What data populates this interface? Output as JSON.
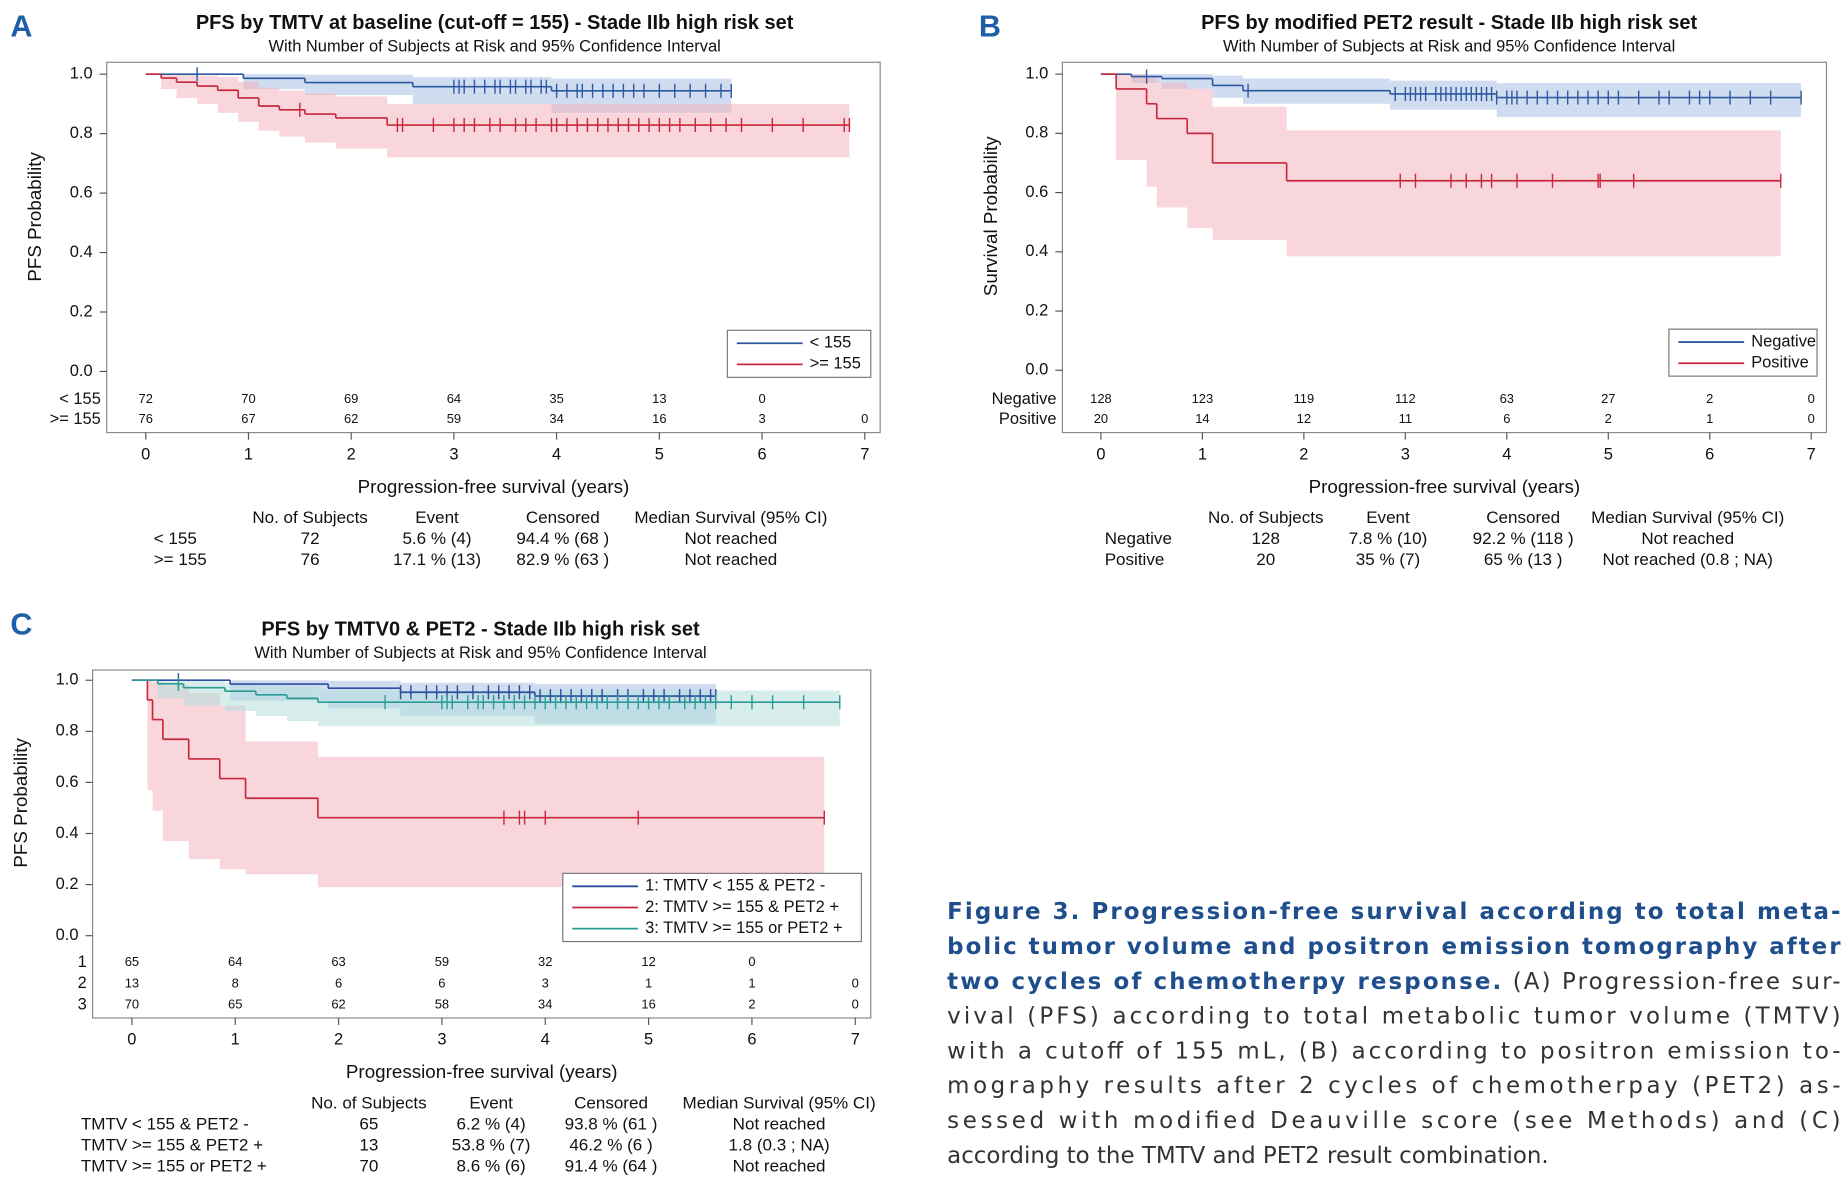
{
  "chart_data": [
    {
      "type": "step",
      "panel": "A",
      "title": "PFS by TMTV at baseline (cut-off = 155) - Stade IIb high risk set",
      "subtitle": "With Number of Subjects at Risk and 95% Confidence Interval",
      "xlabel": "Progression-free survival (years)",
      "ylabel": "PFS Probability",
      "xlim": [
        -0.38,
        7.15
      ],
      "ylim": [
        0,
        1.04
      ],
      "xticks": [
        0,
        1,
        2,
        3,
        4,
        5,
        6,
        7
      ],
      "yticks": [
        {
          "value": 0,
          "label": "0.0"
        },
        0.2,
        0.4,
        0.6,
        0.8,
        {
          "value": 1,
          "label": "1.0"
        }
      ],
      "legend": "lower right",
      "series": [
        {
          "name": "< 155",
          "color": "#2d5aa0",
          "band_color": "#a9bfe3",
          "x": [
            0,
            0.95,
            1.55,
            2.6,
            3.95
          ],
          "values": [
            1,
            0.986,
            0.972,
            0.958,
            0.944
          ],
          "lower": [
            1,
            0.95,
            0.93,
            0.9,
            0.87
          ],
          "upper": [
            1,
            1,
            0.998,
            0.99,
            0.985
          ],
          "censored": [
            0.5,
            3.0,
            3.05,
            3.1,
            3.2,
            3.3,
            3.4,
            3.45,
            3.55,
            3.6,
            3.7,
            3.75,
            3.85,
            3.9,
            4.0,
            4.1,
            4.2,
            4.25,
            4.35,
            4.45,
            4.55,
            4.65,
            4.75,
            4.85,
            5.0,
            5.15,
            5.3,
            5.45,
            5.6,
            5.7
          ]
        },
        {
          "name": ">= 155",
          "color": "#c8283c",
          "band_color": "#f2b5c0",
          "x": [
            0,
            0.15,
            0.3,
            0.5,
            0.7,
            0.9,
            1.1,
            1.3,
            1.55,
            1.85,
            2.35
          ],
          "values": [
            1,
            0.987,
            0.973,
            0.96,
            0.946,
            0.92,
            0.893,
            0.88,
            0.866,
            0.853,
            0.829
          ],
          "lower": [
            1,
            0.95,
            0.92,
            0.9,
            0.87,
            0.84,
            0.81,
            0.79,
            0.77,
            0.75,
            0.72
          ],
          "upper": [
            1,
            1,
            1,
            0.995,
            0.99,
            0.975,
            0.955,
            0.945,
            0.935,
            0.925,
            0.9
          ],
          "censored": [
            1.5,
            2.45,
            2.5,
            2.8,
            3.0,
            3.1,
            3.2,
            3.35,
            3.45,
            3.6,
            3.7,
            3.8,
            3.95,
            4.0,
            4.1,
            4.2,
            4.3,
            4.4,
            4.5,
            4.6,
            4.7,
            4.8,
            4.9,
            5.0,
            5.1,
            5.2,
            5.35,
            5.5,
            5.65,
            5.8,
            6.1,
            6.4,
            6.8,
            6.85
          ]
        }
      ],
      "at_risk": {
        "labels": [
          "< 155",
          ">= 155"
        ],
        "times": [
          0,
          1,
          2,
          3,
          4,
          5,
          6,
          7
        ],
        "counts": [
          [
            72,
            70,
            69,
            64,
            35,
            13,
            0,
            null
          ],
          [
            76,
            67,
            62,
            59,
            34,
            16,
            3,
            0
          ]
        ]
      },
      "summary": {
        "header": [
          "No. of Subjects",
          "Event",
          "Censored",
          "Median Survival (95% CI)"
        ],
        "rows": [
          [
            "< 155",
            "72",
            "5.6 % (4)",
            "94.4 % (68 )",
            "Not reached"
          ],
          [
            ">= 155",
            "76",
            "17.1 % (13)",
            "82.9 % (63 )",
            "Not reached"
          ]
        ]
      }
    },
    {
      "type": "step",
      "panel": "B",
      "title": "PFS by modified PET2 result - Stade IIb high risk set",
      "subtitle": "With Number of Subjects at Risk and 95% Confidence Interval",
      "xlabel": "Progression-free survival (years)",
      "ylabel": "Survival Probability",
      "xlim": [
        -0.38,
        7.15
      ],
      "ylim": [
        0,
        1.04
      ],
      "xticks": [
        0,
        1,
        2,
        3,
        4,
        5,
        6,
        7
      ],
      "yticks": [
        {
          "value": 0,
          "label": "0.0"
        },
        0.2,
        0.4,
        0.6,
        0.8,
        {
          "value": 1,
          "label": "1.0"
        }
      ],
      "legend": "lower right",
      "series": [
        {
          "name": "Negative",
          "color": "#2d5aa0",
          "band_color": "#a9bfe3",
          "x": [
            0,
            0.3,
            0.6,
            1.1,
            1.4,
            2.85,
            3.9
          ],
          "values": [
            1,
            0.992,
            0.985,
            0.962,
            0.944,
            0.933,
            0.921
          ],
          "lower": [
            1,
            0.97,
            0.95,
            0.92,
            0.9,
            0.88,
            0.855
          ],
          "upper": [
            1,
            1,
            1,
            0.995,
            0.985,
            0.978,
            0.97
          ],
          "censored": [
            0.45,
            1.45,
            2.9,
            3.0,
            3.05,
            3.1,
            3.15,
            3.2,
            3.3,
            3.35,
            3.4,
            3.45,
            3.5,
            3.55,
            3.6,
            3.65,
            3.7,
            3.75,
            3.8,
            3.85,
            3.9,
            4.0,
            4.05,
            4.1,
            4.2,
            4.3,
            4.4,
            4.5,
            4.6,
            4.7,
            4.8,
            4.9,
            5.0,
            5.1,
            5.3,
            5.5,
            5.6,
            5.8,
            5.9,
            6.0,
            6.2,
            6.4,
            6.6,
            6.9
          ]
        },
        {
          "name": "Positive",
          "color": "#c8283c",
          "band_color": "#f2b5c0",
          "x": [
            0,
            0.15,
            0.45,
            0.55,
            0.85,
            1.1,
            1.83
          ],
          "values": [
            1,
            0.95,
            0.9,
            0.85,
            0.8,
            0.7,
            0.64
          ],
          "lower": [
            1,
            0.71,
            0.62,
            0.55,
            0.48,
            0.44,
            0.385
          ],
          "upper": [
            1,
            1,
            0.99,
            0.97,
            0.95,
            0.89,
            0.81
          ],
          "censored": [
            2.95,
            3.1,
            3.45,
            3.6,
            3.75,
            3.85,
            4.1,
            4.45,
            4.9,
            4.92,
            5.25,
            6.7
          ]
        }
      ],
      "at_risk": {
        "labels": [
          "Negative",
          "Positive"
        ],
        "times": [
          0,
          1,
          2,
          3,
          4,
          5,
          6,
          7
        ],
        "counts": [
          [
            128,
            123,
            119,
            112,
            63,
            27,
            2,
            0
          ],
          [
            20,
            14,
            12,
            11,
            6,
            2,
            1,
            0
          ]
        ]
      },
      "summary": {
        "header": [
          "No. of Subjects",
          "Event",
          "Censored",
          "Median Survival (95% CI)"
        ],
        "rows": [
          [
            "Negative",
            "128",
            "7.8 % (10)",
            "92.2 % (118 )",
            "Not reached"
          ],
          [
            "Positive",
            "20",
            "35 % (7)",
            "65 % (13 )",
            "Not reached (0.8 ; NA)"
          ]
        ]
      }
    },
    {
      "type": "step",
      "panel": "C",
      "title": "PFS by TMTV0 & PET2 - Stade IIb high risk set",
      "subtitle": "With Number of Subjects at Risk and 95% Confidence Interval",
      "xlabel": "Progression-free survival (years)",
      "ylabel": "PFS Probability",
      "xlim": [
        -0.38,
        7.15
      ],
      "ylim": [
        0,
        1.04
      ],
      "xticks": [
        0,
        1,
        2,
        3,
        4,
        5,
        6,
        7
      ],
      "yticks": [
        {
          "value": 0,
          "label": "0.0"
        },
        0.2,
        0.4,
        0.6,
        0.8,
        {
          "value": 1,
          "label": "1.0"
        }
      ],
      "legend": "lower right",
      "series": [
        {
          "name": "1: TMTV < 155 & PET2 -",
          "color": "#2d4f9e",
          "band_color": "#a9bfe3",
          "x": [
            0,
            0.95,
            1.9,
            2.6,
            3.9
          ],
          "values": [
            1,
            0.985,
            0.969,
            0.953,
            0.938
          ],
          "lower": [
            1,
            0.92,
            0.89,
            0.86,
            0.83
          ],
          "upper": [
            1,
            1,
            0.998,
            0.99,
            0.985
          ],
          "censored": [
            0.45,
            2.6,
            2.7,
            2.85,
            2.95,
            3.05,
            3.15,
            3.3,
            3.45,
            3.55,
            3.65,
            3.75,
            3.85,
            3.95,
            4.05,
            4.15,
            4.25,
            4.35,
            4.45,
            4.55,
            4.7,
            4.8,
            4.95,
            5.05,
            5.15,
            5.3,
            5.4,
            5.5,
            5.6,
            5.65
          ]
        },
        {
          "name": "2: TMTV >= 155 & PET2 +",
          "color": "#c8283c",
          "band_color": "#f2b5c0",
          "x": [
            0,
            0.15,
            0.2,
            0.3,
            0.55,
            0.85,
            1.1,
            1.8
          ],
          "values": [
            1,
            0.923,
            0.846,
            0.769,
            0.692,
            0.615,
            0.538,
            0.462
          ],
          "lower": [
            1,
            0.57,
            0.49,
            0.37,
            0.3,
            0.26,
            0.24,
            0.19
          ],
          "upper": [
            1,
            1,
            0.995,
            0.98,
            0.95,
            0.9,
            0.76,
            0.7
          ],
          "censored": [
            3.6,
            3.75,
            3.8,
            4.0,
            4.9,
            6.7
          ]
        },
        {
          "name": "3: TMTV >= 155 or PET2 +",
          "color": "#2b9b96",
          "band_color": "#b4dfdc",
          "x": [
            0,
            0.25,
            0.5,
            0.9,
            1.2,
            1.5,
            1.8
          ],
          "values": [
            1,
            0.986,
            0.971,
            0.957,
            0.943,
            0.929,
            0.914
          ],
          "lower": [
            1,
            0.93,
            0.9,
            0.88,
            0.86,
            0.84,
            0.82
          ],
          "upper": [
            1,
            1,
            0.998,
            0.99,
            0.985,
            0.975,
            0.96
          ],
          "censored": [
            0.45,
            2.45,
            3.0,
            3.05,
            3.1,
            3.25,
            3.35,
            3.4,
            3.5,
            3.6,
            3.7,
            3.8,
            3.9,
            4.0,
            4.1,
            4.2,
            4.3,
            4.4,
            4.5,
            4.6,
            4.7,
            4.8,
            4.9,
            5.0,
            5.1,
            5.2,
            5.35,
            5.45,
            5.55,
            5.65,
            5.8,
            6.0,
            6.2,
            6.5,
            6.85
          ]
        }
      ],
      "at_risk": {
        "labels": [
          "1",
          "2",
          "3"
        ],
        "times": [
          0,
          1,
          2,
          3,
          4,
          5,
          6,
          7
        ],
        "counts": [
          [
            65,
            64,
            63,
            59,
            32,
            12,
            0,
            null
          ],
          [
            13,
            8,
            6,
            6,
            3,
            1,
            1,
            0
          ],
          [
            70,
            65,
            62,
            58,
            34,
            16,
            2,
            0
          ]
        ]
      },
      "summary": {
        "header": [
          "No. of Subjects",
          "Event",
          "Censored",
          "Median Survival (95% CI)"
        ],
        "rows": [
          [
            "TMTV < 155 & PET2 -",
            "65",
            "6.2 % (4)",
            "93.8 % (61 )",
            "Not reached"
          ],
          [
            "TMTV >= 155 & PET2 +",
            "13",
            "53.8 % (7)",
            "46.2 % (6 )",
            "1.8 (0.3 ; NA)"
          ],
          [
            "TMTV >= 155 or PET2 +",
            "70",
            "8.6 % (6)",
            "91.4 % (64 )",
            "Not reached"
          ]
        ]
      }
    }
  ],
  "caption": {
    "title_lines": [
      "Figure 3. Progression-free survival according to total meta-",
      "bolic tumor volume and positron emission tomography after",
      "two cycles of chemotherpy response."
    ],
    "body_lines": [
      " (A) Progression-free sur-",
      "vival (PFS) according to total metabolic tumor volume (TMTV)",
      "with a cutoff of 155 mL, (B) according to positron emission to-",
      "mography results after 2 cycles of chemotherpay (PET2) as-",
      "sessed with modified Deauville score (see Methods) and (C)",
      "according to the TMTV and PET2 result combination."
    ]
  }
}
